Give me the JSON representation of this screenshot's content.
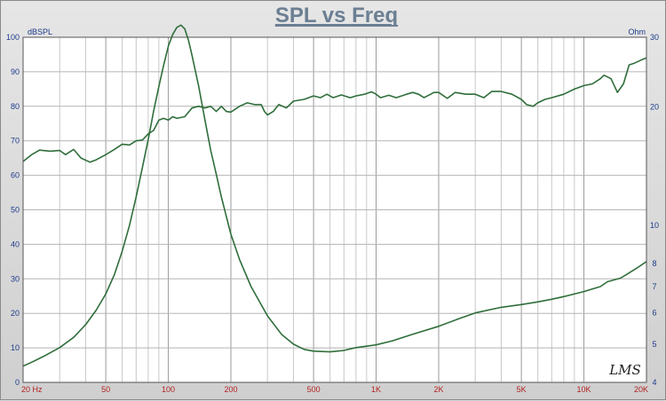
{
  "chart_data": {
    "type": "line",
    "title": "SPL vs Freq",
    "left_axis_label": "dBSPL",
    "right_axis_label": "Ohm",
    "x_scale": "log",
    "xlim": [
      20,
      20000
    ],
    "ylim_left": [
      0,
      100
    ],
    "ylim_right": [
      4,
      30
    ],
    "right_scale": "log",
    "grid": true,
    "x_ticks": [
      {
        "value": 20,
        "label": "20  Hz"
      },
      {
        "value": 50,
        "label": "50"
      },
      {
        "value": 100,
        "label": "100"
      },
      {
        "value": 200,
        "label": "200"
      },
      {
        "value": 500,
        "label": "500"
      },
      {
        "value": 1000,
        "label": "1K"
      },
      {
        "value": 2000,
        "label": "2K"
      },
      {
        "value": 5000,
        "label": "5K"
      },
      {
        "value": 10000,
        "label": "10K"
      },
      {
        "value": 20000,
        "label": "20K"
      }
    ],
    "left_ticks": [
      0,
      10,
      20,
      30,
      40,
      50,
      60,
      70,
      80,
      90,
      100
    ],
    "right_ticks": [
      4,
      5,
      6,
      7,
      8,
      10,
      20,
      30
    ],
    "series": [
      {
        "axis": "left",
        "color": "#2f6e3b",
        "points": [
          [
            20,
            64
          ],
          [
            22,
            66
          ],
          [
            24,
            67.3
          ],
          [
            27,
            67
          ],
          [
            30,
            67.2
          ],
          [
            32,
            66
          ],
          [
            35,
            67.5
          ],
          [
            38,
            65
          ],
          [
            42,
            63.8
          ],
          [
            45,
            64.5
          ],
          [
            50,
            66
          ],
          [
            55,
            67.5
          ],
          [
            60,
            69
          ],
          [
            65,
            68.8
          ],
          [
            70,
            70
          ],
          [
            75,
            70.2
          ],
          [
            80,
            72
          ],
          [
            85,
            73
          ],
          [
            90,
            76
          ],
          [
            95,
            76.5
          ],
          [
            100,
            76
          ],
          [
            105,
            77
          ],
          [
            110,
            76.5
          ],
          [
            120,
            77
          ],
          [
            130,
            79.5
          ],
          [
            140,
            80
          ],
          [
            150,
            79.5
          ],
          [
            160,
            80
          ],
          [
            170,
            78.5
          ],
          [
            180,
            80
          ],
          [
            190,
            78.5
          ],
          [
            200,
            78.3
          ],
          [
            220,
            80
          ],
          [
            240,
            81
          ],
          [
            260,
            80.5
          ],
          [
            280,
            80.5
          ],
          [
            290,
            78.5
          ],
          [
            300,
            77.5
          ],
          [
            320,
            78.5
          ],
          [
            340,
            80.5
          ],
          [
            370,
            79.5
          ],
          [
            400,
            81.5
          ],
          [
            450,
            82
          ],
          [
            500,
            83
          ],
          [
            540,
            82.5
          ],
          [
            580,
            83.5
          ],
          [
            620,
            82.5
          ],
          [
            680,
            83.3
          ],
          [
            750,
            82.5
          ],
          [
            800,
            83
          ],
          [
            880,
            83.5
          ],
          [
            950,
            84.2
          ],
          [
            1000,
            83.5
          ],
          [
            1050,
            82.5
          ],
          [
            1150,
            83.2
          ],
          [
            1250,
            82.5
          ],
          [
            1400,
            83.5
          ],
          [
            1500,
            84
          ],
          [
            1600,
            83.5
          ],
          [
            1700,
            82.5
          ],
          [
            1900,
            84
          ],
          [
            2000,
            84
          ],
          [
            2200,
            82.3
          ],
          [
            2400,
            84
          ],
          [
            2700,
            83.5
          ],
          [
            3000,
            83.5
          ],
          [
            3300,
            82.5
          ],
          [
            3600,
            84.3
          ],
          [
            4000,
            84.3
          ],
          [
            4500,
            83.5
          ],
          [
            5000,
            82
          ],
          [
            5300,
            80.5
          ],
          [
            5700,
            80
          ],
          [
            6000,
            81
          ],
          [
            6500,
            82
          ],
          [
            7000,
            82.5
          ],
          [
            8000,
            83.5
          ],
          [
            9000,
            85
          ],
          [
            10000,
            86
          ],
          [
            11000,
            86.5
          ],
          [
            12000,
            88
          ],
          [
            12500,
            89
          ],
          [
            13500,
            88
          ],
          [
            14500,
            84
          ],
          [
            15500,
            86.5
          ],
          [
            16500,
            92
          ],
          [
            17500,
            92.5
          ],
          [
            19000,
            93.5
          ],
          [
            20000,
            94
          ]
        ]
      },
      {
        "axis": "right",
        "color": "#2f6e3b",
        "points": [
          [
            20,
            4.4
          ],
          [
            22,
            4.5
          ],
          [
            25,
            4.65
          ],
          [
            30,
            4.9
          ],
          [
            35,
            5.2
          ],
          [
            40,
            5.6
          ],
          [
            45,
            6.1
          ],
          [
            50,
            6.7
          ],
          [
            55,
            7.5
          ],
          [
            60,
            8.6
          ],
          [
            65,
            10
          ],
          [
            70,
            11.8
          ],
          [
            75,
            14
          ],
          [
            80,
            16.5
          ],
          [
            85,
            19.5
          ],
          [
            90,
            22.5
          ],
          [
            95,
            25.5
          ],
          [
            100,
            28.5
          ],
          [
            105,
            30.5
          ],
          [
            110,
            31.8
          ],
          [
            115,
            32.2
          ],
          [
            120,
            31.5
          ],
          [
            125,
            29.5
          ],
          [
            130,
            27
          ],
          [
            140,
            22.5
          ],
          [
            150,
            18.5
          ],
          [
            160,
            15.5
          ],
          [
            170,
            13.5
          ],
          [
            180,
            11.8
          ],
          [
            200,
            9.5
          ],
          [
            220,
            8.2
          ],
          [
            250,
            7
          ],
          [
            300,
            5.9
          ],
          [
            350,
            5.3
          ],
          [
            400,
            5
          ],
          [
            450,
            4.85
          ],
          [
            500,
            4.8
          ],
          [
            600,
            4.78
          ],
          [
            700,
            4.82
          ],
          [
            800,
            4.9
          ],
          [
            1000,
            4.98
          ],
          [
            1200,
            5.1
          ],
          [
            1500,
            5.3
          ],
          [
            2000,
            5.55
          ],
          [
            2500,
            5.8
          ],
          [
            3000,
            6
          ],
          [
            4000,
            6.2
          ],
          [
            5000,
            6.3
          ],
          [
            6000,
            6.4
          ],
          [
            7000,
            6.5
          ],
          [
            8000,
            6.6
          ],
          [
            10000,
            6.8
          ],
          [
            12000,
            7
          ],
          [
            13000,
            7.2
          ],
          [
            15000,
            7.35
          ],
          [
            16000,
            7.5
          ],
          [
            18000,
            7.8
          ],
          [
            20000,
            8.1
          ]
        ]
      }
    ],
    "logo_text": "LMS"
  }
}
